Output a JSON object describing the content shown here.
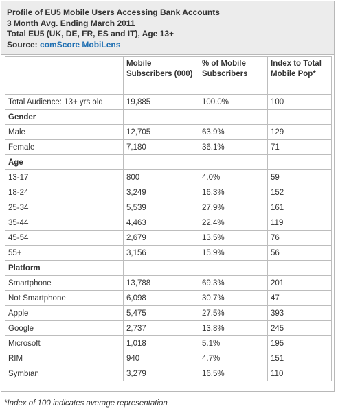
{
  "header": {
    "line1": "Profile of EU5 Mobile Users Accessing Bank Accounts",
    "line2": "3 Month Avg. Ending March 2011",
    "line3": "Total EU5 (UK, DE, FR, ES and IT), Age 13+",
    "source_label": "Source:",
    "source_name": "comScore MobiLens"
  },
  "table": {
    "columns": [
      "",
      "Mobile Subscribers (000)",
      "% of Mobile Subscribers",
      "Index to Total Mobile Pop*"
    ],
    "rows": [
      {
        "cells": [
          "Total Audience: 13+ yrs old",
          "19,885",
          "100.0%",
          "100"
        ]
      },
      {
        "section": true,
        "cells": [
          "Gender",
          "",
          "",
          ""
        ]
      },
      {
        "cells": [
          "Male",
          "12,705",
          "63.9%",
          "129"
        ]
      },
      {
        "cells": [
          "Female",
          "7,180",
          "36.1%",
          "71"
        ]
      },
      {
        "section": true,
        "cells": [
          "Age",
          "",
          "",
          ""
        ]
      },
      {
        "cells": [
          "13-17",
          "800",
          "4.0%",
          "59"
        ]
      },
      {
        "cells": [
          "18-24",
          "3,249",
          "16.3%",
          "152"
        ]
      },
      {
        "cells": [
          "25-34",
          "5,539",
          "27.9%",
          "161"
        ]
      },
      {
        "cells": [
          "35-44",
          "4,463",
          "22.4%",
          "119"
        ]
      },
      {
        "cells": [
          "45-54",
          "2,679",
          "13.5%",
          "76"
        ]
      },
      {
        "cells": [
          "55+",
          "3,156",
          "15.9%",
          "56"
        ]
      },
      {
        "section": true,
        "cells": [
          "Platform",
          "",
          "",
          ""
        ]
      },
      {
        "cells": [
          "Smartphone",
          "13,788",
          "69.3%",
          "201"
        ]
      },
      {
        "cells": [
          "Not Smartphone",
          "6,098",
          "30.7%",
          "47"
        ]
      },
      {
        "cells": [
          "Apple",
          "5,475",
          "27.5%",
          "393"
        ]
      },
      {
        "cells": [
          "Google",
          "2,737",
          "13.8%",
          "245"
        ]
      },
      {
        "cells": [
          "Microsoft",
          "1,018",
          "5.1%",
          "195"
        ]
      },
      {
        "cells": [
          "RIM",
          "940",
          "4.7%",
          "151"
        ]
      },
      {
        "cells": [
          "Symbian",
          "3,279",
          "16.5%",
          "110"
        ]
      }
    ]
  },
  "footnote": "*Index of 100 indicates average representation",
  "colors": {
    "header_bg": "#ececec",
    "source_link": "#1f6fb2",
    "border": "#bdbdbd",
    "text": "#333333"
  }
}
